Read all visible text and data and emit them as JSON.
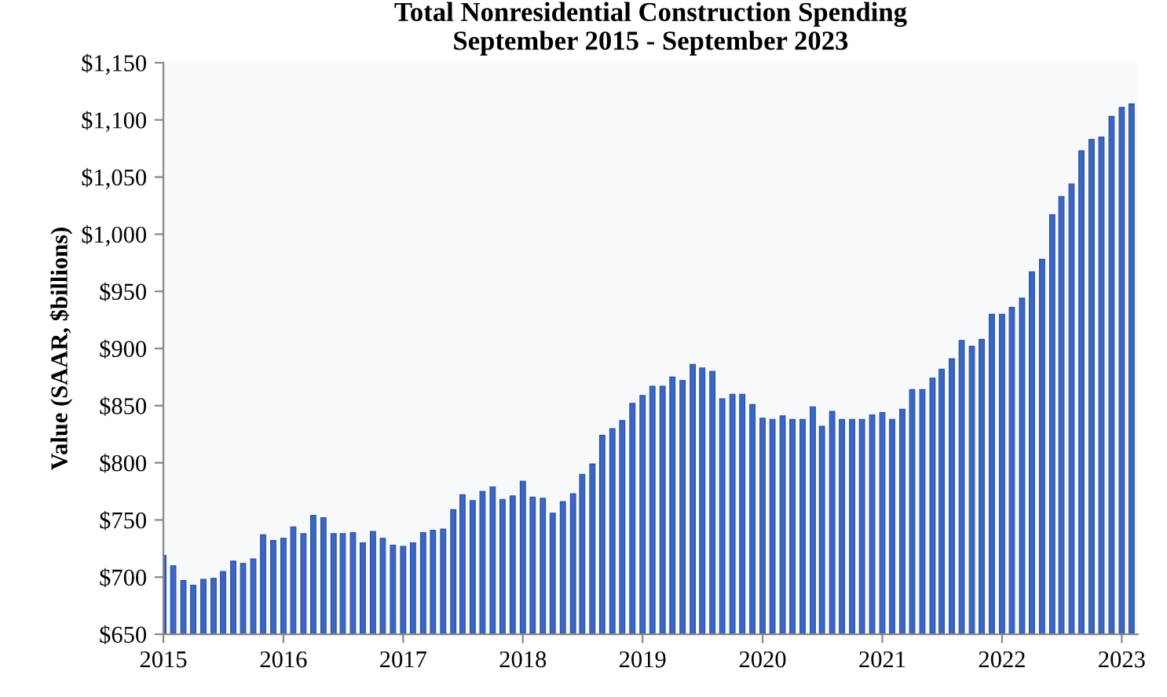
{
  "chart_data": {
    "type": "bar",
    "title": "Total Nonresidential Construction Spending\nSeptember 2015 - September 2023",
    "ylabel": "Value (SAAR, $billions)",
    "x": [
      "2015-09",
      "2015-10",
      "2015-11",
      "2015-12",
      "2016-01",
      "2016-02",
      "2016-03",
      "2016-04",
      "2016-05",
      "2016-06",
      "2016-07",
      "2016-08",
      "2016-09",
      "2016-10",
      "2016-11",
      "2016-12",
      "2017-01",
      "2017-02",
      "2017-03",
      "2017-04",
      "2017-05",
      "2017-06",
      "2017-07",
      "2017-08",
      "2017-09",
      "2017-10",
      "2017-11",
      "2017-12",
      "2018-01",
      "2018-02",
      "2018-03",
      "2018-04",
      "2018-05",
      "2018-06",
      "2018-07",
      "2018-08",
      "2018-09",
      "2018-10",
      "2018-11",
      "2018-12",
      "2019-01",
      "2019-02",
      "2019-03",
      "2019-04",
      "2019-05",
      "2019-06",
      "2019-07",
      "2019-08",
      "2019-09",
      "2019-10",
      "2019-11",
      "2019-12",
      "2020-01",
      "2020-02",
      "2020-03",
      "2020-04",
      "2020-05",
      "2020-06",
      "2020-07",
      "2020-08",
      "2020-09",
      "2020-10",
      "2020-11",
      "2020-12",
      "2021-01",
      "2021-02",
      "2021-03",
      "2021-04",
      "2021-05",
      "2021-06",
      "2021-07",
      "2021-08",
      "2021-09",
      "2021-10",
      "2021-11",
      "2021-12",
      "2022-01",
      "2022-02",
      "2022-03",
      "2022-04",
      "2022-05",
      "2022-06",
      "2022-07",
      "2022-08",
      "2022-09",
      "2022-10",
      "2022-11",
      "2022-12",
      "2023-01",
      "2023-02",
      "2023-03",
      "2023-04",
      "2023-05",
      "2023-06",
      "2023-07",
      "2023-08",
      "2023-09",
      "2023-10"
    ],
    "values": [
      719,
      710,
      697,
      693,
      698,
      699,
      705,
      714,
      712,
      716,
      737,
      732,
      734,
      744,
      738,
      754,
      752,
      738,
      738,
      739,
      730,
      740,
      734,
      728,
      727,
      730,
      739,
      741,
      742,
      759,
      772,
      767,
      775,
      779,
      768,
      771,
      784,
      770,
      769,
      756,
      766,
      773,
      790,
      799,
      824,
      830,
      837,
      852,
      859,
      867,
      867,
      875,
      872,
      886,
      883,
      880,
      856,
      860,
      860,
      851,
      839,
      838,
      841,
      838,
      838,
      849,
      832,
      845,
      838,
      838,
      838,
      842,
      844,
      838,
      847,
      864,
      864,
      874,
      882,
      891,
      907,
      902,
      908,
      930,
      930,
      936,
      944,
      967,
      978,
      1017,
      1033,
      1044,
      1073,
      1083,
      1085,
      1103,
      1111,
      1114
    ],
    "color": "#3a66c4",
    "xlim": [
      "2015-09-01",
      "2023-10-20"
    ],
    "xticks": [
      {
        "value": "2015-09",
        "label": "2015"
      },
      {
        "value": "2016-09",
        "label": "2016"
      },
      {
        "value": "2017-09",
        "label": "2017"
      },
      {
        "value": "2018-09",
        "label": "2018"
      },
      {
        "value": "2019-09",
        "label": "2019"
      },
      {
        "value": "2020-09",
        "label": "2020"
      },
      {
        "value": "2021-09",
        "label": "2021"
      },
      {
        "value": "2022-09",
        "label": "2022"
      },
      {
        "value": "2023-09",
        "label": "2023"
      }
    ],
    "ylim": [
      650,
      1150
    ],
    "yticks": [
      {
        "value": 650,
        "label": "$650"
      },
      {
        "value": 700,
        "label": "$700"
      },
      {
        "value": 750,
        "label": "$750"
      },
      {
        "value": 800,
        "label": "$800"
      },
      {
        "value": 850,
        "label": "$850"
      },
      {
        "value": 900,
        "label": "$900"
      },
      {
        "value": 950,
        "label": "$950"
      },
      {
        "value": 1000,
        "label": "$1,000"
      },
      {
        "value": 1050,
        "label": "$1,050"
      },
      {
        "value": 1100,
        "label": "$1,100"
      },
      {
        "value": 1150,
        "label": "$1,150"
      }
    ],
    "grid": false,
    "legend": false
  }
}
